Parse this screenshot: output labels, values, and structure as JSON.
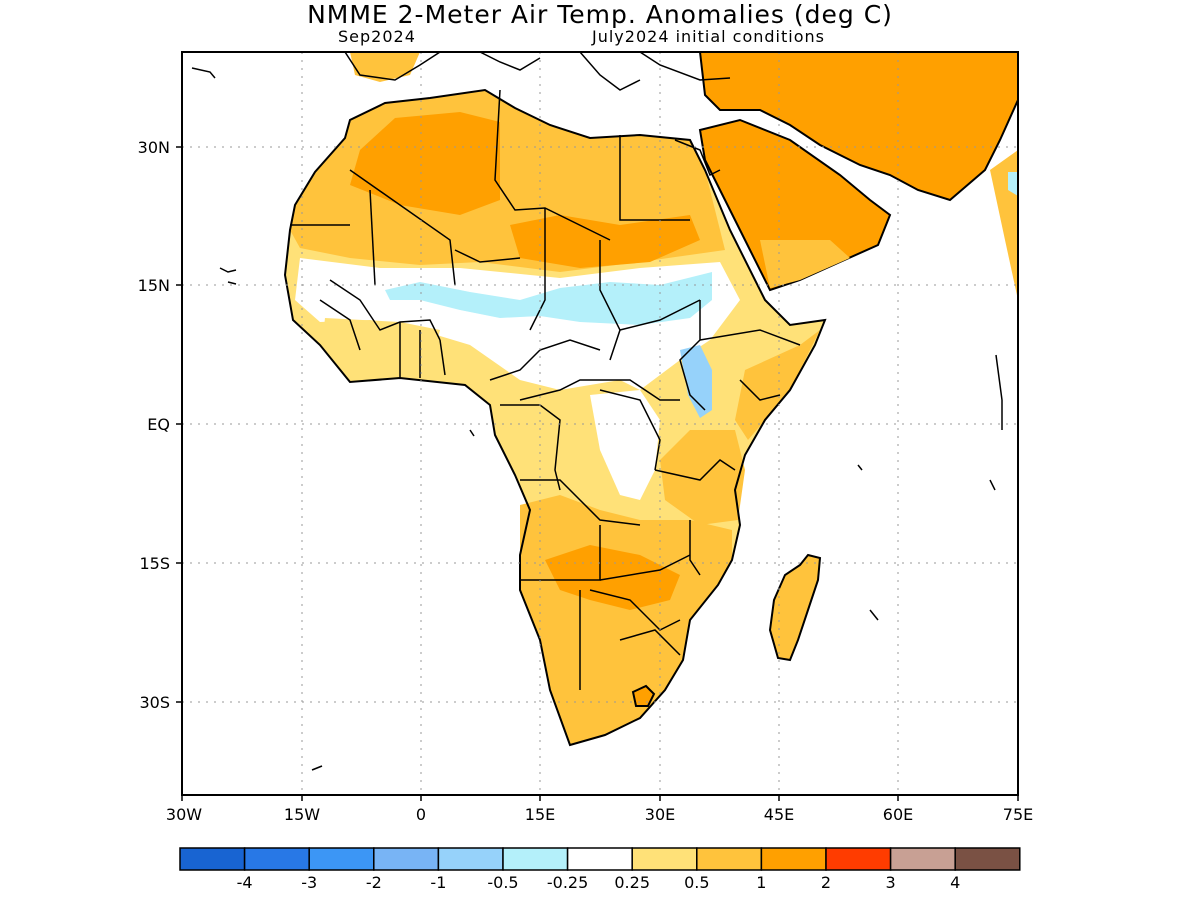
{
  "title": "NMME 2-Meter Air Temp. Anomalies (deg C)",
  "subtitle_left": "Sep2024",
  "subtitle_right": "July2024 initial conditions",
  "map": {
    "region": "Africa",
    "grid": true,
    "lon_range": [
      -30,
      75
    ],
    "lat_range": [
      -40,
      40
    ],
    "lat_labels": [
      "30N",
      "15N",
      "EQ",
      "15S",
      "30S"
    ],
    "lon_labels": [
      "30W",
      "15W",
      "0",
      "15E",
      "30E",
      "45E",
      "60E",
      "75E"
    ]
  },
  "colorbar": {
    "colors": [
      "#1864d2",
      "#2878e6",
      "#3c96f5",
      "#78b4f5",
      "#96d2fa",
      "#b4f0fa",
      "#ffffff",
      "#ffe178",
      "#ffc33c",
      "#ffa000",
      "#ff3c00",
      "#c8a094",
      "#7a5144"
    ],
    "labels": [
      "-4",
      "-3",
      "-2",
      "-1",
      "-0.5",
      "-0.25",
      "0.25",
      "0.5",
      "1",
      "2",
      "3",
      "4"
    ]
  }
}
